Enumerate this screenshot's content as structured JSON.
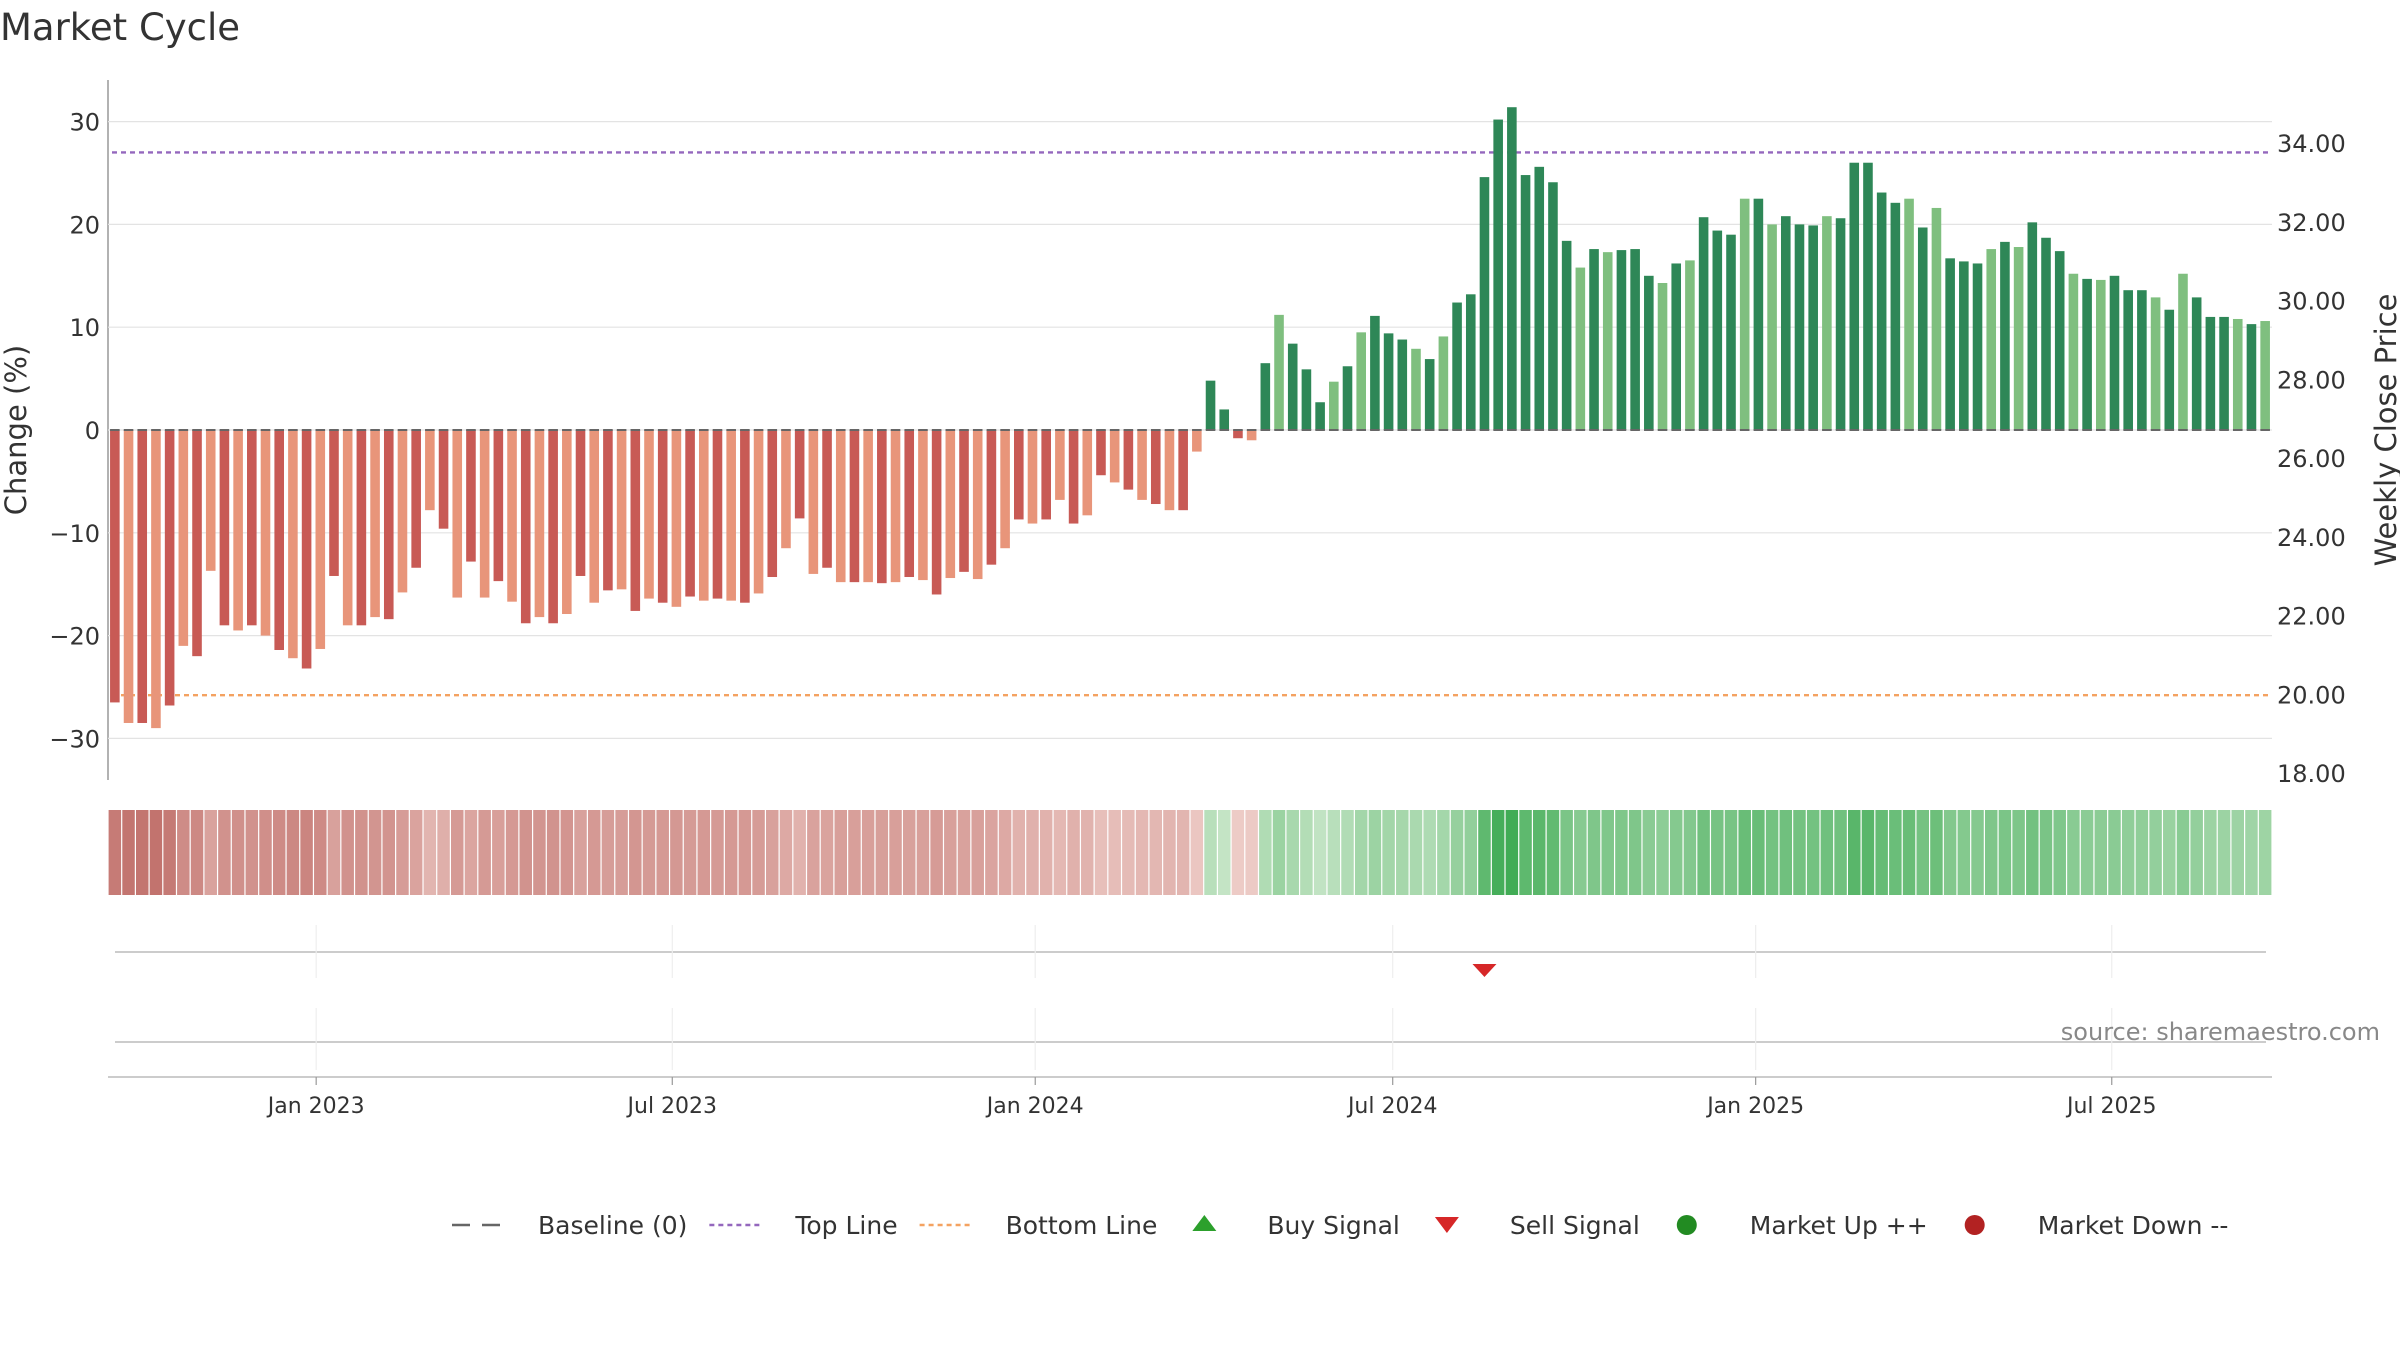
{
  "chart_data": {
    "type": "bar",
    "title": "Market Cycle",
    "ylabel": "Change (%)",
    "y2label": "Weekly Close Price",
    "ylim": [
      -34,
      34
    ],
    "y2lim": [
      18,
      35
    ],
    "yticks": [
      "30",
      "20",
      "10",
      "0",
      "−10",
      "−20",
      "−30"
    ],
    "yticks_values": [
      30,
      20,
      10,
      0,
      -10,
      -20,
      -30
    ],
    "y2ticks": [
      "34.00",
      "32.00",
      "30.00",
      "28.00",
      "26.00",
      "24.00",
      "22.00",
      "20.00",
      "18.00"
    ],
    "y2ticks_values": [
      34,
      32,
      30,
      28,
      26,
      24,
      22,
      20,
      18
    ],
    "xticks": [
      "Jan 2023",
      "Jul 2023",
      "Jan 2024",
      "Jul 2024",
      "Jan 2025",
      "Jul 2025"
    ],
    "xticks_index": [
      15.2,
      41.2,
      67.7,
      93.8,
      120.3,
      146.3
    ],
    "top_line": 27,
    "bottom_line": -25.8,
    "grid": true,
    "legend_position": "bottom",
    "source": "source: sharemaestro.com",
    "colors": {
      "baseline": "#666666",
      "top_line": "#9467bd",
      "bottom_line": "#f4a261",
      "buy": "#2ca02c",
      "sell": "#d62728",
      "up": "#228b22",
      "down": "#b22222"
    },
    "values": [
      -26.5,
      -28.5,
      -28.5,
      -29,
      -26.8,
      -21,
      -22,
      -13.7,
      -19,
      -19.5,
      -19,
      -20,
      -21.4,
      -22.2,
      -23.2,
      -21.3,
      -14.2,
      -19,
      -19,
      -18.2,
      -18.4,
      -15.8,
      -13.4,
      -7.8,
      -9.6,
      -16.3,
      -12.8,
      -16.3,
      -14.7,
      -16.7,
      -18.8,
      -18.2,
      -18.8,
      -17.9,
      -14.2,
      -16.8,
      -15.6,
      -15.5,
      -17.6,
      -16.4,
      -16.8,
      -17.2,
      -16.2,
      -16.6,
      -16.4,
      -16.6,
      -16.8,
      -15.9,
      -14.3,
      -11.5,
      -8.6,
      -14,
      -13.4,
      -14.8,
      -14.8,
      -14.8,
      -14.9,
      -14.8,
      -14.3,
      -14.6,
      -16,
      -14.4,
      -13.8,
      -14.5,
      -13.1,
      -11.5,
      -8.7,
      -9.1,
      -8.7,
      -6.8,
      -9.1,
      -8.3,
      -4.4,
      -5.1,
      -5.8,
      -6.8,
      -7.2,
      -7.8,
      -7.8,
      -2.1,
      4.8,
      2,
      -0.8,
      -1,
      6.5,
      11.2,
      8.4,
      5.9,
      2.7,
      4.7,
      6.2,
      9.5,
      11.1,
      9.4,
      8.8,
      7.9,
      6.9,
      9.1,
      12.4,
      13.2,
      24.6,
      30.2,
      31.4,
      24.8,
      25.6,
      24.1,
      18.4,
      15.8,
      17.6,
      17.3,
      17.5,
      17.6,
      15,
      14.3,
      16.2,
      16.5,
      20.7,
      19.4,
      19,
      22.5,
      22.5,
      20,
      20.8,
      20,
      19.9,
      20.8,
      20.6,
      26,
      26,
      23.1,
      22.1,
      22.5,
      19.7,
      21.6,
      16.7,
      16.4,
      16.2,
      17.6,
      18.3,
      17.8,
      20.2,
      18.7,
      17.4,
      15.2,
      14.7,
      14.6,
      15,
      13.6,
      13.6,
      12.9,
      11.7,
      15.2,
      12.9,
      11,
      11,
      10.8,
      10.3,
      10.6
    ],
    "signals": [
      {
        "type": "sell",
        "index": 100
      }
    ],
    "legend": [
      {
        "key": "baseline",
        "label": "Baseline (0)"
      },
      {
        "key": "top_line",
        "label": "Top Line"
      },
      {
        "key": "bottom_line",
        "label": "Bottom Line"
      },
      {
        "key": "buy",
        "label": "Buy Signal"
      },
      {
        "key": "sell",
        "label": "Sell Signal"
      },
      {
        "key": "up",
        "label": "Market Up ++"
      },
      {
        "key": "down",
        "label": "Market Down --"
      }
    ]
  }
}
